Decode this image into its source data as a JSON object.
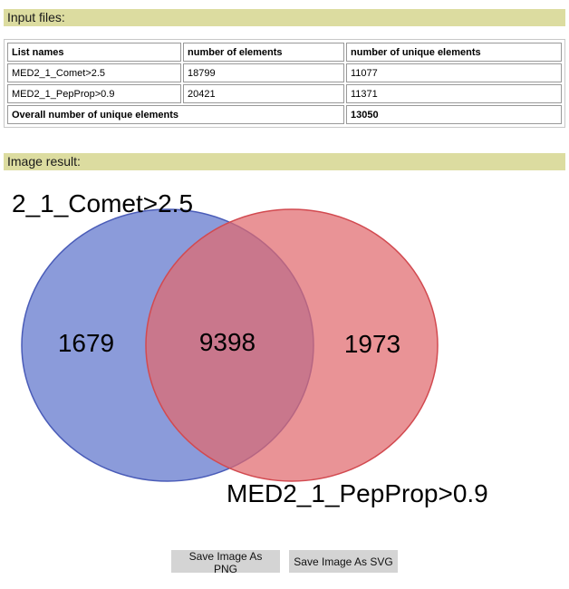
{
  "input_section": {
    "title": "Input files:",
    "columns": [
      "List names",
      "number of elements",
      "number of unique elements"
    ],
    "rows": [
      {
        "name": "MED2_1_Comet>2.5",
        "elements": "18799",
        "unique": "11077"
      },
      {
        "name": "MED2_1_PepProp>0.9",
        "elements": "20421",
        "unique": "11371"
      }
    ],
    "overall_label": "Overall number of unique elements",
    "overall_value": "13050"
  },
  "image_section": {
    "title": "Image result:"
  },
  "venn": {
    "set_a_label": "2_1_Comet>2.5",
    "set_b_label": "MED2_1_PepProp>0.9",
    "only_a": "1679",
    "intersection": "9398",
    "only_b": "1973",
    "set_a_color": "#6a7fd0",
    "set_b_color": "#e06a6e"
  },
  "buttons": {
    "save_png": "Save Image As PNG",
    "save_svg": "Save Image As SVG"
  }
}
